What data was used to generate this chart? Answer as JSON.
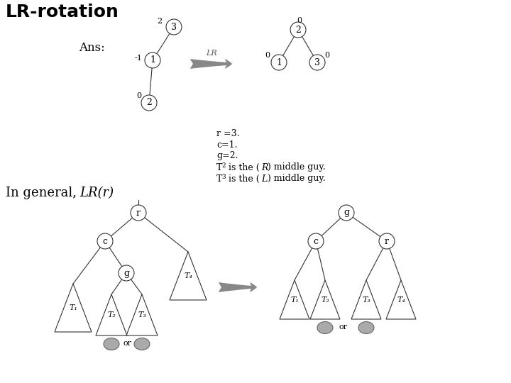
{
  "title": "LR-rotation",
  "ans_label": "Ans:",
  "bg_color": "#ffffff",
  "node_color": "#ffffff",
  "node_edge_color": "#333333",
  "arrow_color": "#888888",
  "tree_line_color": "#333333",
  "gray_oval_color": "#aaaaaa",
  "info_lines_plain": [
    "r =3.",
    "c=1.",
    "g=2."
  ],
  "info_T2": [
    "T",
    "2",
    " is the (",
    "R",
    ") middle guy."
  ],
  "info_T3": [
    "T",
    "3",
    " is the (",
    "L",
    ") middle guy."
  ]
}
